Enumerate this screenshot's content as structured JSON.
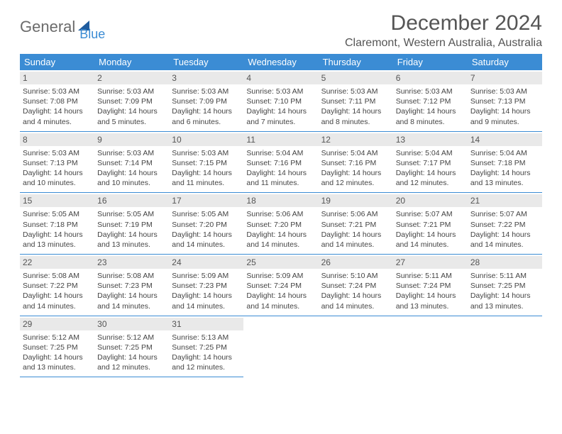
{
  "logo": {
    "text_general": "General",
    "text_blue": "Blue",
    "sail_color": "#1f5c9e"
  },
  "title": "December 2024",
  "subtitle": "Claremont, Western Australia, Australia",
  "header_bg": "#3b8cd4",
  "weekdays": [
    "Sunday",
    "Monday",
    "Tuesday",
    "Wednesday",
    "Thursday",
    "Friday",
    "Saturday"
  ],
  "days": [
    {
      "n": "1",
      "sr": "5:03 AM",
      "ss": "7:08 PM",
      "dl": "14 hours and 4 minutes."
    },
    {
      "n": "2",
      "sr": "5:03 AM",
      "ss": "7:09 PM",
      "dl": "14 hours and 5 minutes."
    },
    {
      "n": "3",
      "sr": "5:03 AM",
      "ss": "7:09 PM",
      "dl": "14 hours and 6 minutes."
    },
    {
      "n": "4",
      "sr": "5:03 AM",
      "ss": "7:10 PM",
      "dl": "14 hours and 7 minutes."
    },
    {
      "n": "5",
      "sr": "5:03 AM",
      "ss": "7:11 PM",
      "dl": "14 hours and 8 minutes."
    },
    {
      "n": "6",
      "sr": "5:03 AM",
      "ss": "7:12 PM",
      "dl": "14 hours and 8 minutes."
    },
    {
      "n": "7",
      "sr": "5:03 AM",
      "ss": "7:13 PM",
      "dl": "14 hours and 9 minutes."
    },
    {
      "n": "8",
      "sr": "5:03 AM",
      "ss": "7:13 PM",
      "dl": "14 hours and 10 minutes."
    },
    {
      "n": "9",
      "sr": "5:03 AM",
      "ss": "7:14 PM",
      "dl": "14 hours and 10 minutes."
    },
    {
      "n": "10",
      "sr": "5:03 AM",
      "ss": "7:15 PM",
      "dl": "14 hours and 11 minutes."
    },
    {
      "n": "11",
      "sr": "5:04 AM",
      "ss": "7:16 PM",
      "dl": "14 hours and 11 minutes."
    },
    {
      "n": "12",
      "sr": "5:04 AM",
      "ss": "7:16 PM",
      "dl": "14 hours and 12 minutes."
    },
    {
      "n": "13",
      "sr": "5:04 AM",
      "ss": "7:17 PM",
      "dl": "14 hours and 12 minutes."
    },
    {
      "n": "14",
      "sr": "5:04 AM",
      "ss": "7:18 PM",
      "dl": "14 hours and 13 minutes."
    },
    {
      "n": "15",
      "sr": "5:05 AM",
      "ss": "7:18 PM",
      "dl": "14 hours and 13 minutes."
    },
    {
      "n": "16",
      "sr": "5:05 AM",
      "ss": "7:19 PM",
      "dl": "14 hours and 13 minutes."
    },
    {
      "n": "17",
      "sr": "5:05 AM",
      "ss": "7:20 PM",
      "dl": "14 hours and 14 minutes."
    },
    {
      "n": "18",
      "sr": "5:06 AM",
      "ss": "7:20 PM",
      "dl": "14 hours and 14 minutes."
    },
    {
      "n": "19",
      "sr": "5:06 AM",
      "ss": "7:21 PM",
      "dl": "14 hours and 14 minutes."
    },
    {
      "n": "20",
      "sr": "5:07 AM",
      "ss": "7:21 PM",
      "dl": "14 hours and 14 minutes."
    },
    {
      "n": "21",
      "sr": "5:07 AM",
      "ss": "7:22 PM",
      "dl": "14 hours and 14 minutes."
    },
    {
      "n": "22",
      "sr": "5:08 AM",
      "ss": "7:22 PM",
      "dl": "14 hours and 14 minutes."
    },
    {
      "n": "23",
      "sr": "5:08 AM",
      "ss": "7:23 PM",
      "dl": "14 hours and 14 minutes."
    },
    {
      "n": "24",
      "sr": "5:09 AM",
      "ss": "7:23 PM",
      "dl": "14 hours and 14 minutes."
    },
    {
      "n": "25",
      "sr": "5:09 AM",
      "ss": "7:24 PM",
      "dl": "14 hours and 14 minutes."
    },
    {
      "n": "26",
      "sr": "5:10 AM",
      "ss": "7:24 PM",
      "dl": "14 hours and 14 minutes."
    },
    {
      "n": "27",
      "sr": "5:11 AM",
      "ss": "7:24 PM",
      "dl": "14 hours and 13 minutes."
    },
    {
      "n": "28",
      "sr": "5:11 AM",
      "ss": "7:25 PM",
      "dl": "14 hours and 13 minutes."
    },
    {
      "n": "29",
      "sr": "5:12 AM",
      "ss": "7:25 PM",
      "dl": "14 hours and 13 minutes."
    },
    {
      "n": "30",
      "sr": "5:12 AM",
      "ss": "7:25 PM",
      "dl": "14 hours and 12 minutes."
    },
    {
      "n": "31",
      "sr": "5:13 AM",
      "ss": "7:25 PM",
      "dl": "14 hours and 12 minutes."
    }
  ],
  "labels": {
    "sunrise": "Sunrise:",
    "sunset": "Sunset:",
    "daylight": "Daylight:"
  }
}
